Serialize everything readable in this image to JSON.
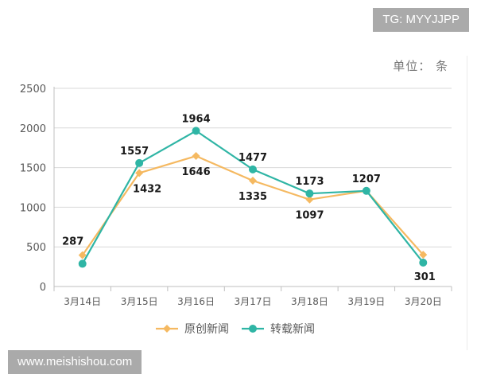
{
  "watermarks": {
    "top": "TG: MYYJJPP",
    "bottom": "www.meishishou.com"
  },
  "unit": "单位：  条",
  "chart_data": {
    "type": "line",
    "categories": [
      "3月14日",
      "3月15日",
      "3月16日",
      "3月17日",
      "3月18日",
      "3月19日",
      "3月20日"
    ],
    "ylim": [
      0,
      2500
    ],
    "yticks": [
      0,
      500,
      1000,
      1500,
      2000,
      2500
    ],
    "grid": true,
    "legend": "bottom",
    "series": [
      {
        "name": "原创新闻",
        "color": "#F5B961",
        "marker": "diamond",
        "values": [
          395,
          1432,
          1646,
          1335,
          1097,
          1207,
          400
        ],
        "labels": [
          "",
          "1432",
          "1646",
          "1335",
          "1097",
          "",
          ""
        ]
      },
      {
        "name": "转载新闻",
        "color": "#2FB5A5",
        "marker": "circle",
        "values": [
          287,
          1557,
          1964,
          1477,
          1173,
          1207,
          301
        ],
        "labels": [
          "287",
          "1557",
          "1964",
          "1477",
          "1173",
          "1207",
          "301"
        ]
      }
    ]
  }
}
